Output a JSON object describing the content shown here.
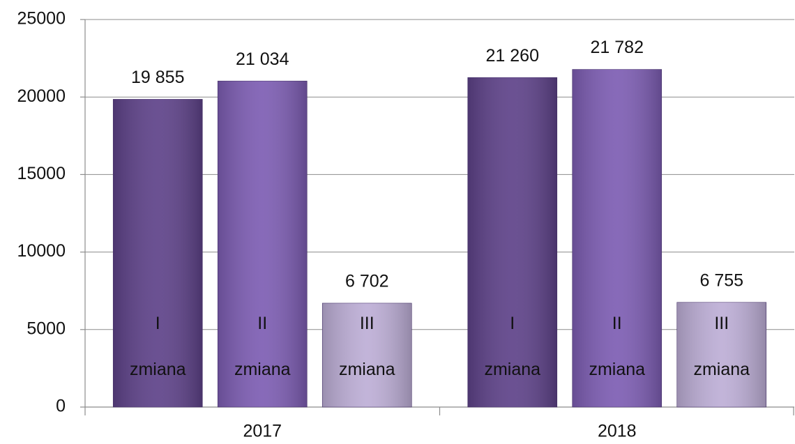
{
  "chart_data": {
    "type": "bar",
    "categories": [
      "2017",
      "2018"
    ],
    "series": [
      {
        "name": "I zmiana",
        "color": "#5e4289",
        "values": [
          19855,
          21260
        ],
        "value_labels": [
          "19 855",
          "21 260"
        ]
      },
      {
        "name": "II zmiana",
        "color": "#7d5db3",
        "values": [
          21034,
          21782
        ],
        "value_labels": [
          "21 034",
          "21 782"
        ]
      },
      {
        "name": "III zmiana",
        "color": "#bdaed6",
        "values": [
          6702,
          6755
        ],
        "value_labels": [
          "6 702",
          "6 755"
        ]
      }
    ],
    "ylim": [
      0,
      25000
    ],
    "yticks": [
      0,
      5000,
      10000,
      15000,
      20000,
      25000
    ],
    "grid": true
  }
}
